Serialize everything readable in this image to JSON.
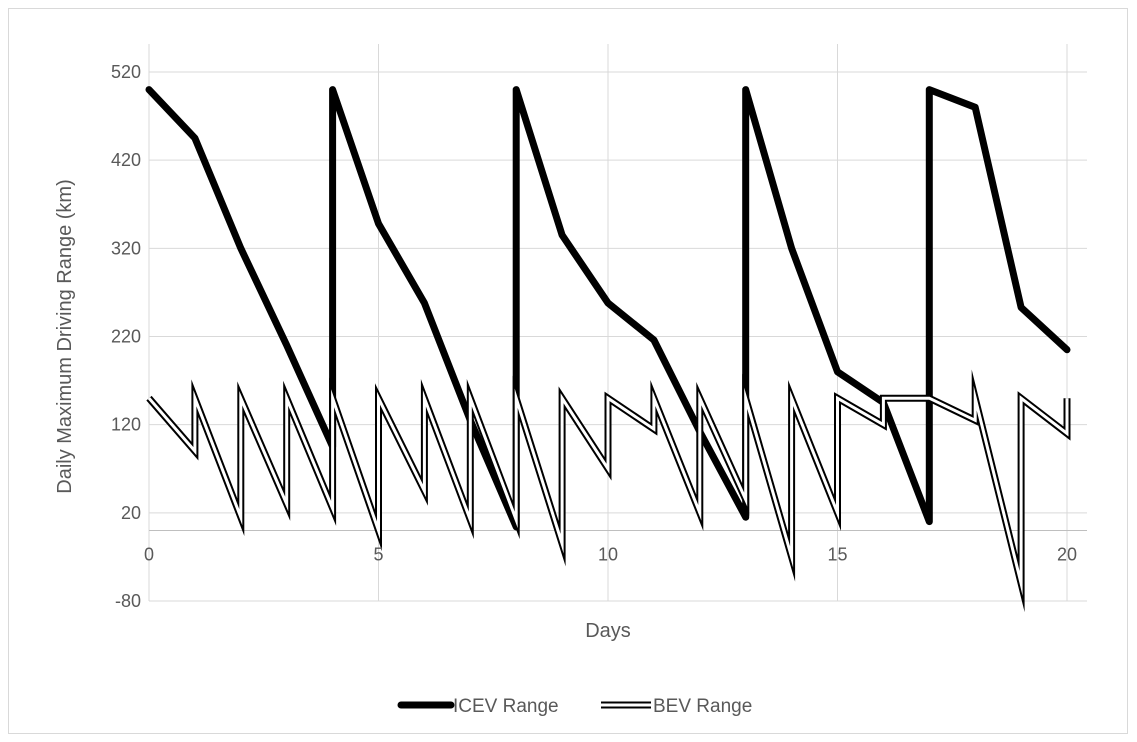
{
  "chart_data": {
    "type": "line",
    "title": "",
    "xlabel": "Days",
    "ylabel": "Daily Maximum Driving Range (km)",
    "xlim": [
      0,
      20
    ],
    "ylim": [
      -80,
      520
    ],
    "x_ticks": [
      0,
      5,
      10,
      15,
      20
    ],
    "y_ticks": [
      -80,
      20,
      120,
      220,
      320,
      420,
      520
    ],
    "grid": true,
    "legend_position": "bottom",
    "series": [
      {
        "name": "ICEV Range",
        "style": "thick",
        "color": "#000000",
        "x": [
          0,
          1,
          2,
          3,
          4,
          4,
          5,
          6,
          7,
          8,
          8,
          9,
          10,
          11,
          12,
          13,
          13,
          14,
          15,
          16,
          17,
          17,
          18,
          19,
          20
        ],
        "y": [
          500,
          445,
          320,
          210,
          95,
          500,
          348,
          258,
          125,
          4,
          500,
          335,
          258,
          216,
          112,
          15,
          500,
          320,
          180,
          145,
          10,
          500,
          480,
          253,
          205
        ]
      },
      {
        "name": "BEV Range",
        "style": "double",
        "color": "#000000",
        "x": [
          0,
          1,
          1,
          2,
          2,
          3,
          3,
          4,
          4,
          5,
          5,
          6,
          6,
          7,
          7,
          8,
          8,
          9,
          9,
          10,
          10,
          11,
          11,
          12,
          12,
          13,
          13,
          14,
          14,
          15,
          15,
          16,
          16,
          17,
          17,
          18,
          18,
          19,
          19,
          20,
          20
        ],
        "y": [
          150,
          90,
          150,
          15,
          150,
          30,
          150,
          25,
          150,
          0,
          150,
          45,
          150,
          12,
          150,
          12,
          150,
          -15,
          150,
          70,
          150,
          115,
          150,
          20,
          150,
          35,
          150,
          -30,
          150,
          20,
          150,
          120,
          150,
          150,
          150,
          125,
          150,
          -60,
          150,
          110,
          150
        ]
      }
    ]
  }
}
